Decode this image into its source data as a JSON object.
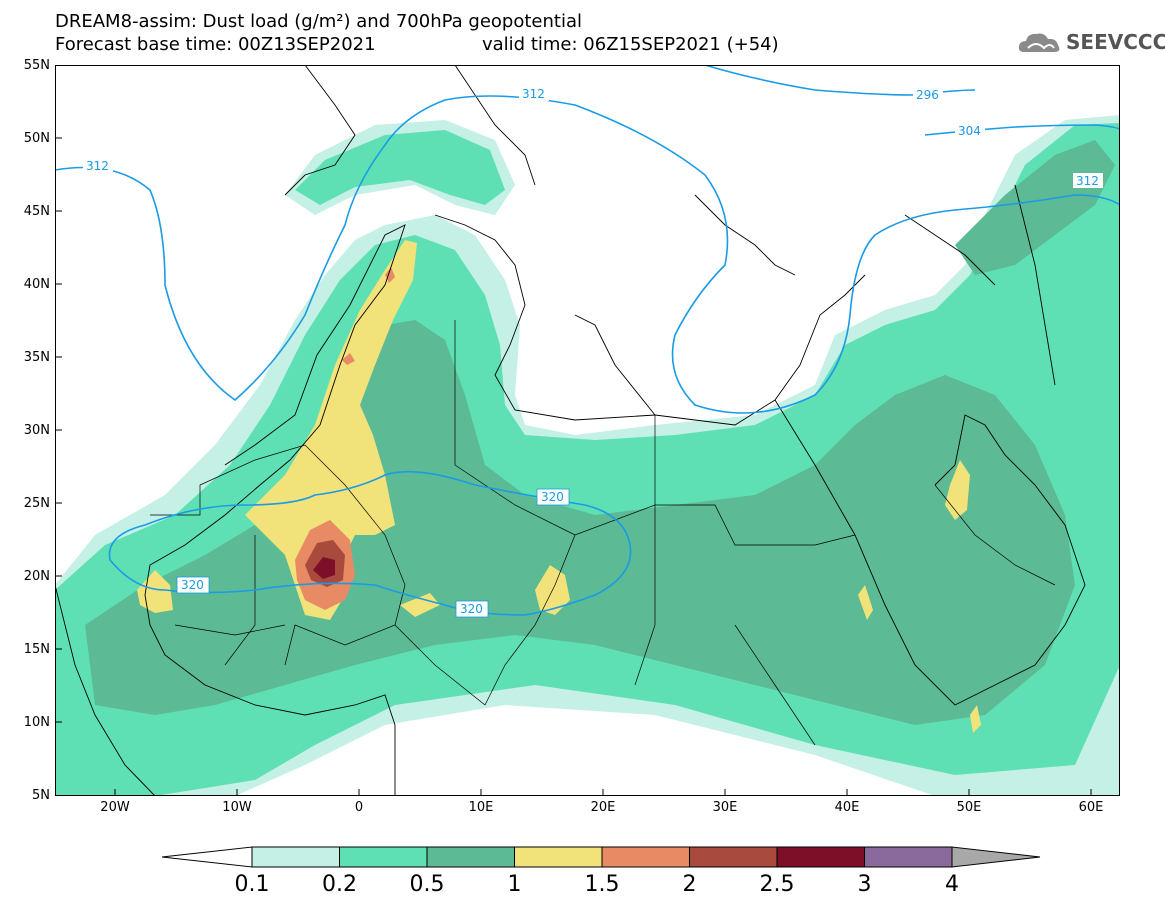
{
  "header": {
    "title_line1": "DREAM8-assim: Dust load (g/m²) and 700hPa geopotential",
    "title_line2_left": "Forecast base time: 00Z13SEP2021",
    "title_line2_right": "valid time: 06Z15SEP2021 (+54)",
    "logo_text": "SEEVCCC"
  },
  "axes": {
    "lat_labels": [
      "55N",
      "50N",
      "45N",
      "40N",
      "35N",
      "30N",
      "25N",
      "20N",
      "15N",
      "10N",
      "5N"
    ],
    "lon_labels": [
      "20W",
      "10W",
      "0",
      "10E",
      "20E",
      "30E",
      "40E",
      "50E",
      "60E"
    ]
  },
  "contour_labels": {
    "c312_west": "312",
    "c312_north": "312",
    "c296": "296",
    "c304": "304",
    "c312_east": "312",
    "c320_a": "320",
    "c320_b": "320",
    "c320_c": "320"
  },
  "colorbar": {
    "labels": [
      "0.1",
      "0.2",
      "0.5",
      "1",
      "1.5",
      "2",
      "2.5",
      "3",
      "4"
    ],
    "colors": [
      "#c4f0e6",
      "#5fe0b4",
      "#5cba94",
      "#f2e27a",
      "#e88a64",
      "#a84a3c",
      "#7d1028",
      "#8a6a9c",
      "#a8a8a8"
    ]
  }
}
